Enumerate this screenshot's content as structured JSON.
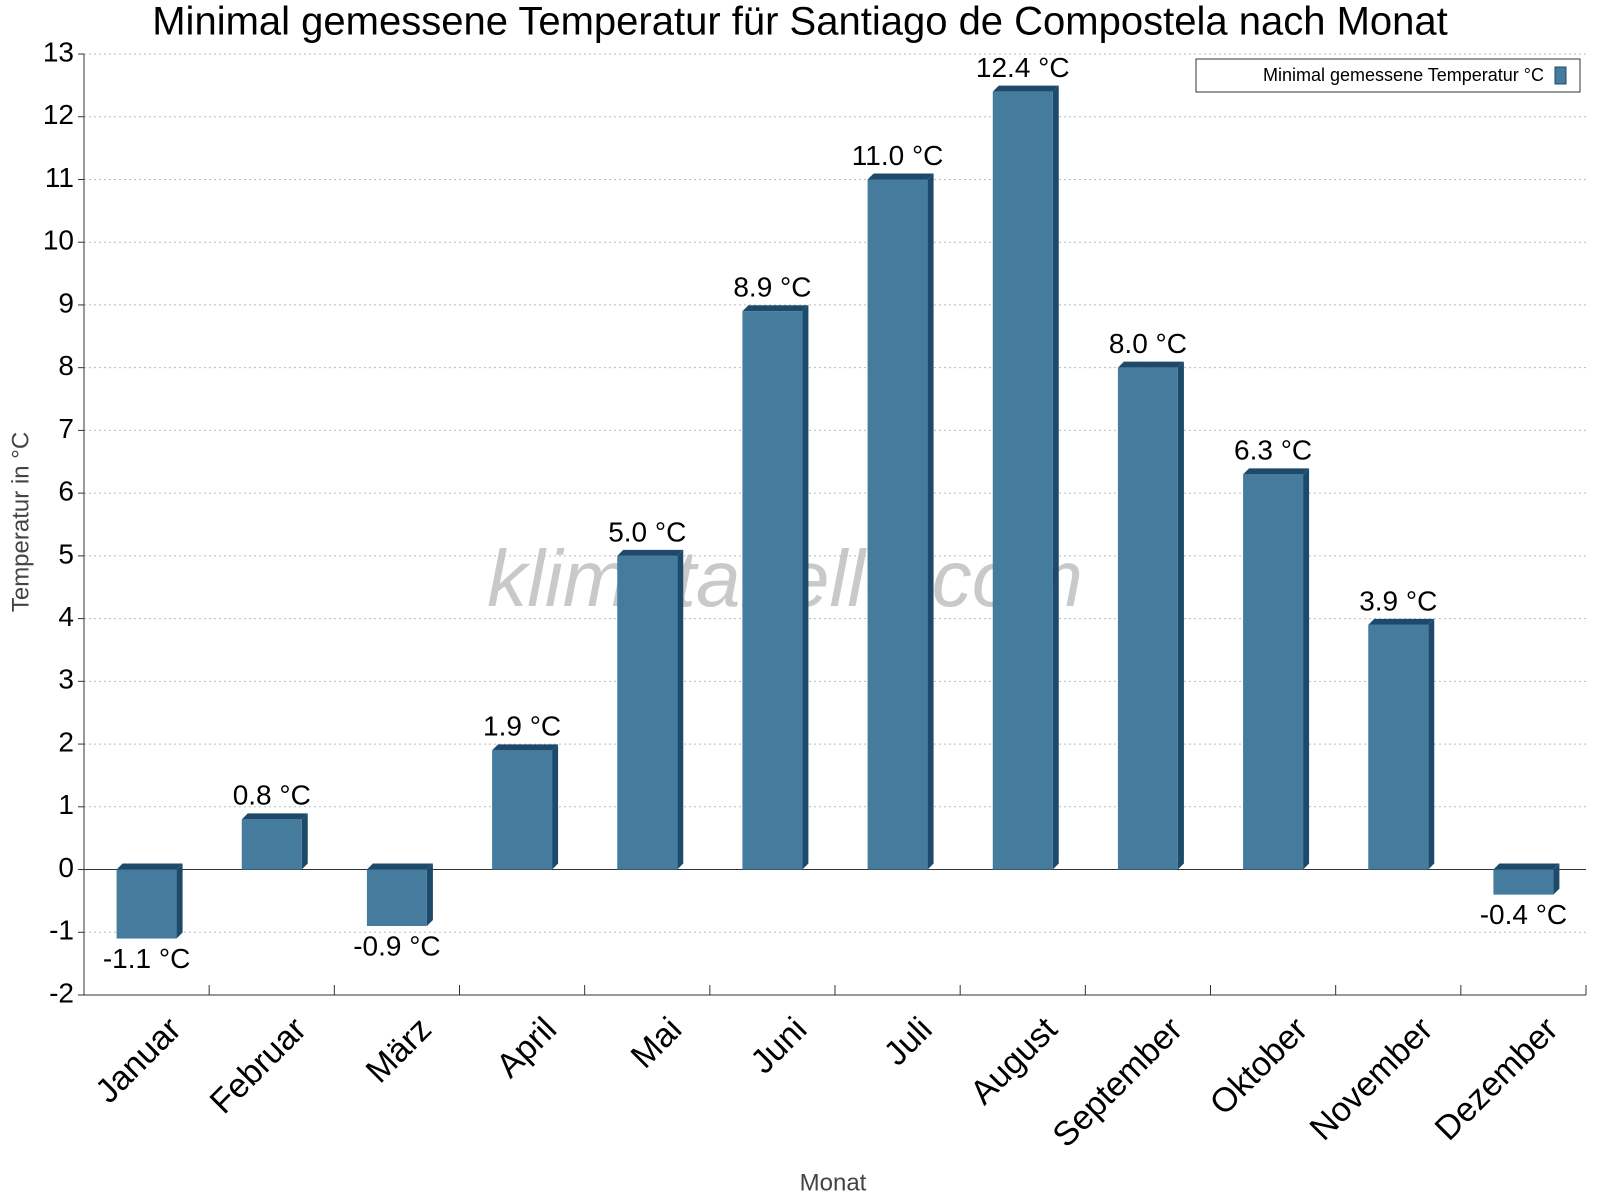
{
  "chart_data": {
    "type": "bar",
    "title": "Minimal gemessene Temperatur für Santiago de Compostela nach Monat",
    "x_label": "Monat",
    "y_label": "Temperatur in °C",
    "watermark": "klimatabelle.com",
    "categories": [
      "Januar",
      "Februar",
      "März",
      "April",
      "Mai",
      "Juni",
      "Juli",
      "August",
      "September",
      "Oktober",
      "November",
      "Dezember"
    ],
    "series": [
      {
        "name": "Minimal gemessene Temperatur °C",
        "color": "#457b9d",
        "values": [
          -1.1,
          0.8,
          -0.9,
          1.9,
          5.0,
          8.9,
          11.0,
          12.4,
          8.0,
          6.3,
          3.9,
          -0.4
        ],
        "value_labels": [
          "-1.1 °C",
          "0.8 °C",
          "-0.9 °C",
          "1.9 °C",
          "5.0 °C",
          "8.9 °C",
          "11.0 °C",
          "12.4 °C",
          "8.0 °C",
          "6.3 °C",
          "3.9 °C",
          "-0.4 °C"
        ]
      }
    ],
    "ylim": [
      -2,
      13
    ],
    "yticks": [
      -2,
      -1,
      0,
      1,
      2,
      3,
      4,
      5,
      6,
      7,
      8,
      9,
      10,
      11,
      12,
      13
    ],
    "grid": true,
    "legend": "top-right"
  }
}
